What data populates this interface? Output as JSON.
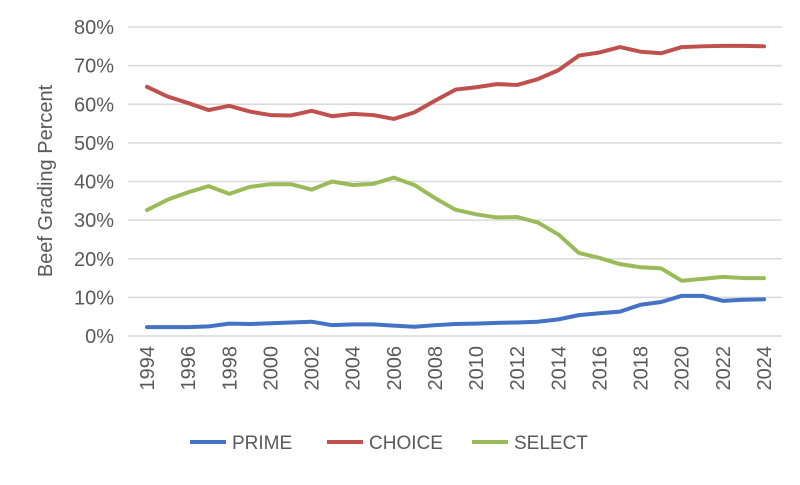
{
  "chart_data": {
    "type": "line",
    "title": "",
    "xlabel": "",
    "ylabel": "Beef Grading Percent",
    "ylim": [
      0,
      80
    ],
    "yticks": [
      "0%",
      "10%",
      "20%",
      "30%",
      "40%",
      "50%",
      "60%",
      "70%",
      "80%"
    ],
    "grid": true,
    "legend_position": "bottom",
    "x": [
      1994,
      1995,
      1996,
      1997,
      1998,
      1999,
      2000,
      2001,
      2002,
      2003,
      2004,
      2005,
      2006,
      2007,
      2008,
      2009,
      2010,
      2011,
      2012,
      2013,
      2014,
      2015,
      2016,
      2017,
      2018,
      2019,
      2020,
      2021,
      2022,
      2023,
      2024
    ],
    "xtick_labels": [
      "1994",
      "1996",
      "1998",
      "2000",
      "2002",
      "2004",
      "2006",
      "2008",
      "2010",
      "2012",
      "2014",
      "2016",
      "2018",
      "2020",
      "2022",
      "2024"
    ],
    "series": [
      {
        "name": "PRIME",
        "color": "#4472c4",
        "values": [
          2.3,
          2.3,
          2.3,
          2.5,
          3.2,
          3.1,
          3.3,
          3.5,
          3.7,
          2.8,
          3.0,
          3.0,
          2.7,
          2.4,
          2.8,
          3.1,
          3.2,
          3.4,
          3.5,
          3.7,
          4.3,
          5.4,
          5.9,
          6.3,
          8.1,
          8.8,
          10.4,
          10.4,
          9.1,
          9.4,
          9.5
        ]
      },
      {
        "name": "CHOICE",
        "color": "#c0504d",
        "values": [
          64.5,
          62.0,
          60.3,
          58.5,
          59.6,
          58.1,
          57.2,
          57.1,
          58.3,
          56.9,
          57.5,
          57.2,
          56.2,
          57.9,
          60.9,
          63.8,
          64.4,
          65.2,
          65.0,
          66.5,
          68.8,
          72.6,
          73.4,
          74.8,
          73.6,
          73.2,
          74.8,
          75.0,
          75.1,
          75.1,
          75.0
        ]
      },
      {
        "name": "SELECT",
        "color": "#9bbb59",
        "values": [
          32.6,
          35.3,
          37.2,
          38.8,
          36.8,
          38.6,
          39.3,
          39.3,
          37.9,
          40.0,
          39.1,
          39.4,
          41.0,
          39.1,
          35.7,
          32.7,
          31.5,
          30.7,
          30.8,
          29.4,
          26.3,
          21.5,
          20.2,
          18.6,
          17.8,
          17.5,
          14.3,
          14.8,
          15.3,
          15.0,
          15.0
        ]
      }
    ]
  }
}
